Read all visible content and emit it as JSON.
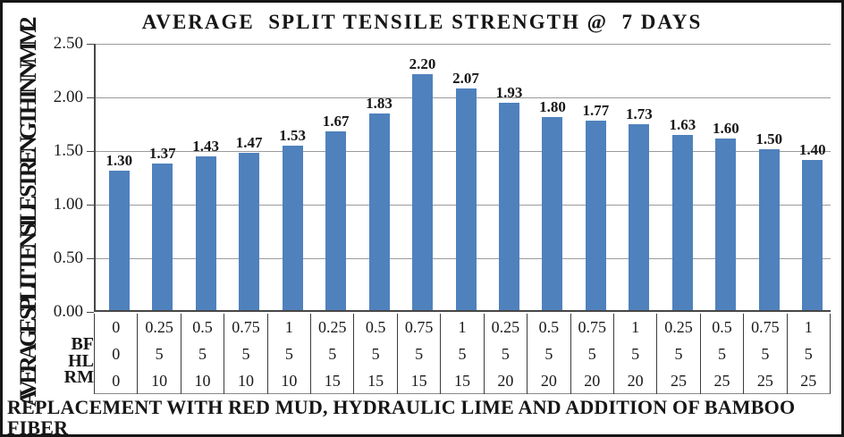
{
  "chart_data": {
    "type": "bar",
    "title": "AVERAGE  SPLIT TENSILE STRENGTH @  7 DAYS",
    "ylabel": "AVERAGE SPLIT TENSILE STRENGTH IN N/MM2",
    "xlabel": "REPLACEMENT WITH RED MUD, HYDRAULIC LIME AND ADDITION OF BAMBOO FIBER",
    "xlabel_lines": [
      "REPLACEMENT WITH RED MUD, HYDRAULIC LIME AND ADDITION OF BAMBOO",
      "FIBER"
    ],
    "values": [
      1.3,
      1.37,
      1.43,
      1.47,
      1.53,
      1.67,
      1.83,
      2.2,
      2.07,
      1.93,
      1.8,
      1.77,
      1.73,
      1.63,
      1.6,
      1.5,
      1.4
    ],
    "value_labels": [
      "1.30",
      "1.37",
      "1.43",
      "1.47",
      "1.53",
      "1.67",
      "1.83",
      "2.20",
      "2.07",
      "1.93",
      "1.80",
      "1.77",
      "1.73",
      "1.63",
      "1.60",
      "1.50",
      "1.40"
    ],
    "ylim": [
      0,
      2.5
    ],
    "ytick_step": 0.5,
    "yticks": [
      "2.50",
      "2.00",
      "1.50",
      "1.00",
      "0.50",
      "0.00"
    ],
    "grid": true,
    "legend": "none",
    "bar_color": "#4F81BD",
    "category_rows": [
      {
        "label": "BF",
        "values": [
          "0",
          "0.25",
          "0.5",
          "0.75",
          "1",
          "0.25",
          "0.5",
          "0.75",
          "1",
          "0.25",
          "0.5",
          "0.75",
          "1",
          "0.25",
          "0.5",
          "0.75",
          "1"
        ]
      },
      {
        "label": "HL",
        "values": [
          "0",
          "5",
          "5",
          "5",
          "5",
          "5",
          "5",
          "5",
          "5",
          "5",
          "5",
          "5",
          "5",
          "5",
          "5",
          "5",
          "5"
        ]
      },
      {
        "label": "RM",
        "values": [
          "0",
          "10",
          "10",
          "10",
          "10",
          "15",
          "15",
          "15",
          "15",
          "20",
          "20",
          "20",
          "20",
          "25",
          "25",
          "25",
          "25"
        ]
      }
    ]
  },
  "colors": {
    "bar": "#4F81BD",
    "gridline": "#9b9b9b",
    "axis": "#474747",
    "table_border": "#3c3c3c",
    "text": "#161616",
    "background": "#ffffff",
    "frame_border": "#161616"
  }
}
